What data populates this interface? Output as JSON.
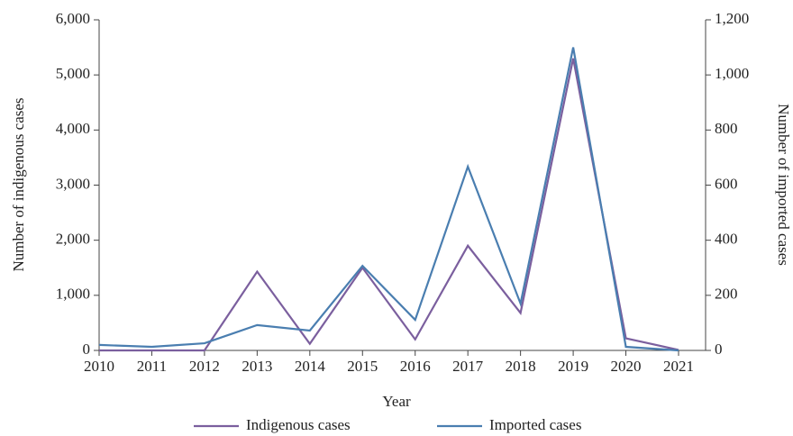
{
  "chart_data": {
    "type": "line",
    "x_label": "Year",
    "y_label": "Number of indigenous cases",
    "y2_label": "Number of imported cases",
    "x": [
      2010,
      2011,
      2012,
      2013,
      2014,
      2015,
      2016,
      2017,
      2018,
      2019,
      2020,
      2021
    ],
    "xlim": [
      2010,
      2021
    ],
    "xticks": [
      2010,
      2011,
      2012,
      2013,
      2014,
      2015,
      2016,
      2017,
      2018,
      2019,
      2020,
      2021
    ],
    "ylim": [
      0,
      6000
    ],
    "yticks": [
      0,
      {
        "value": 1000,
        "label": "1,000"
      },
      {
        "value": 2000,
        "label": "2,000"
      },
      {
        "value": 3000,
        "label": "3,000"
      },
      {
        "value": 4000,
        "label": "4,000"
      },
      {
        "value": 5000,
        "label": "5,000"
      },
      {
        "value": 6000,
        "label": "6,000"
      }
    ],
    "y2lim": [
      0,
      1200
    ],
    "y2ticks": [
      0,
      200,
      400,
      600,
      800,
      {
        "value": 1000,
        "label": "1,000"
      },
      {
        "value": 1200,
        "label": "1,200"
      }
    ],
    "legend": "bottom",
    "series": [
      {
        "name": "Indigenous cases",
        "color": "#7b5f9e",
        "values": [
          0,
          0,
          0,
          1430,
          120,
          1500,
          200,
          1900,
          680,
          5300,
          220,
          10
        ]
      },
      {
        "name": "Imported cases",
        "color": "#4a7eb0",
        "axis": "y2",
        "values": [
          20,
          13,
          26,
          92,
          72,
          307,
          111,
          667,
          170,
          1100,
          13,
          0
        ]
      }
    ]
  }
}
